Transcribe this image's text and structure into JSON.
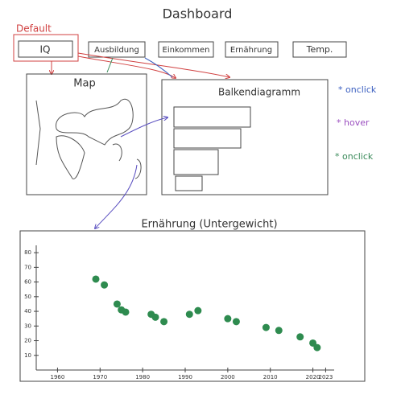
{
  "header": {
    "title": "Dashboard"
  },
  "default_label": "Default",
  "buttons": [
    "IQ",
    "Ausbildung",
    "Einkommen",
    "Ernährung",
    "Temp."
  ],
  "panels": {
    "map": "Map",
    "bar": "Balkendiagramm"
  },
  "legend": [
    {
      "label": "* onclick",
      "color": "#3b5fc0"
    },
    {
      "label": "* hover",
      "color": "#9b4fc0"
    },
    {
      "label": "* onclick",
      "color": "#3a8a5a"
    }
  ],
  "chart_data": {
    "type": "scatter",
    "title": "Ernährung (Untergewicht)",
    "x": [
      1969,
      1971,
      1974,
      1975,
      1976,
      1982,
      1983,
      1985,
      1991,
      1993,
      2000,
      2002,
      2009,
      2012,
      2017,
      2020,
      2021
    ],
    "values": [
      62,
      58,
      45,
      41,
      39.5,
      38,
      36,
      33,
      38,
      40.5,
      35,
      33,
      29,
      27,
      22.6,
      18.4,
      15.3
    ],
    "color": "#2e8b4f",
    "xlim": [
      1955,
      2025
    ],
    "xticks": [
      1960,
      1970,
      1980,
      1990,
      2000,
      2010,
      2020,
      2023
    ],
    "ylim": [
      0,
      85
    ],
    "yticks": [
      10,
      20,
      30,
      40,
      50,
      60,
      70,
      80
    ],
    "grid": false
  }
}
